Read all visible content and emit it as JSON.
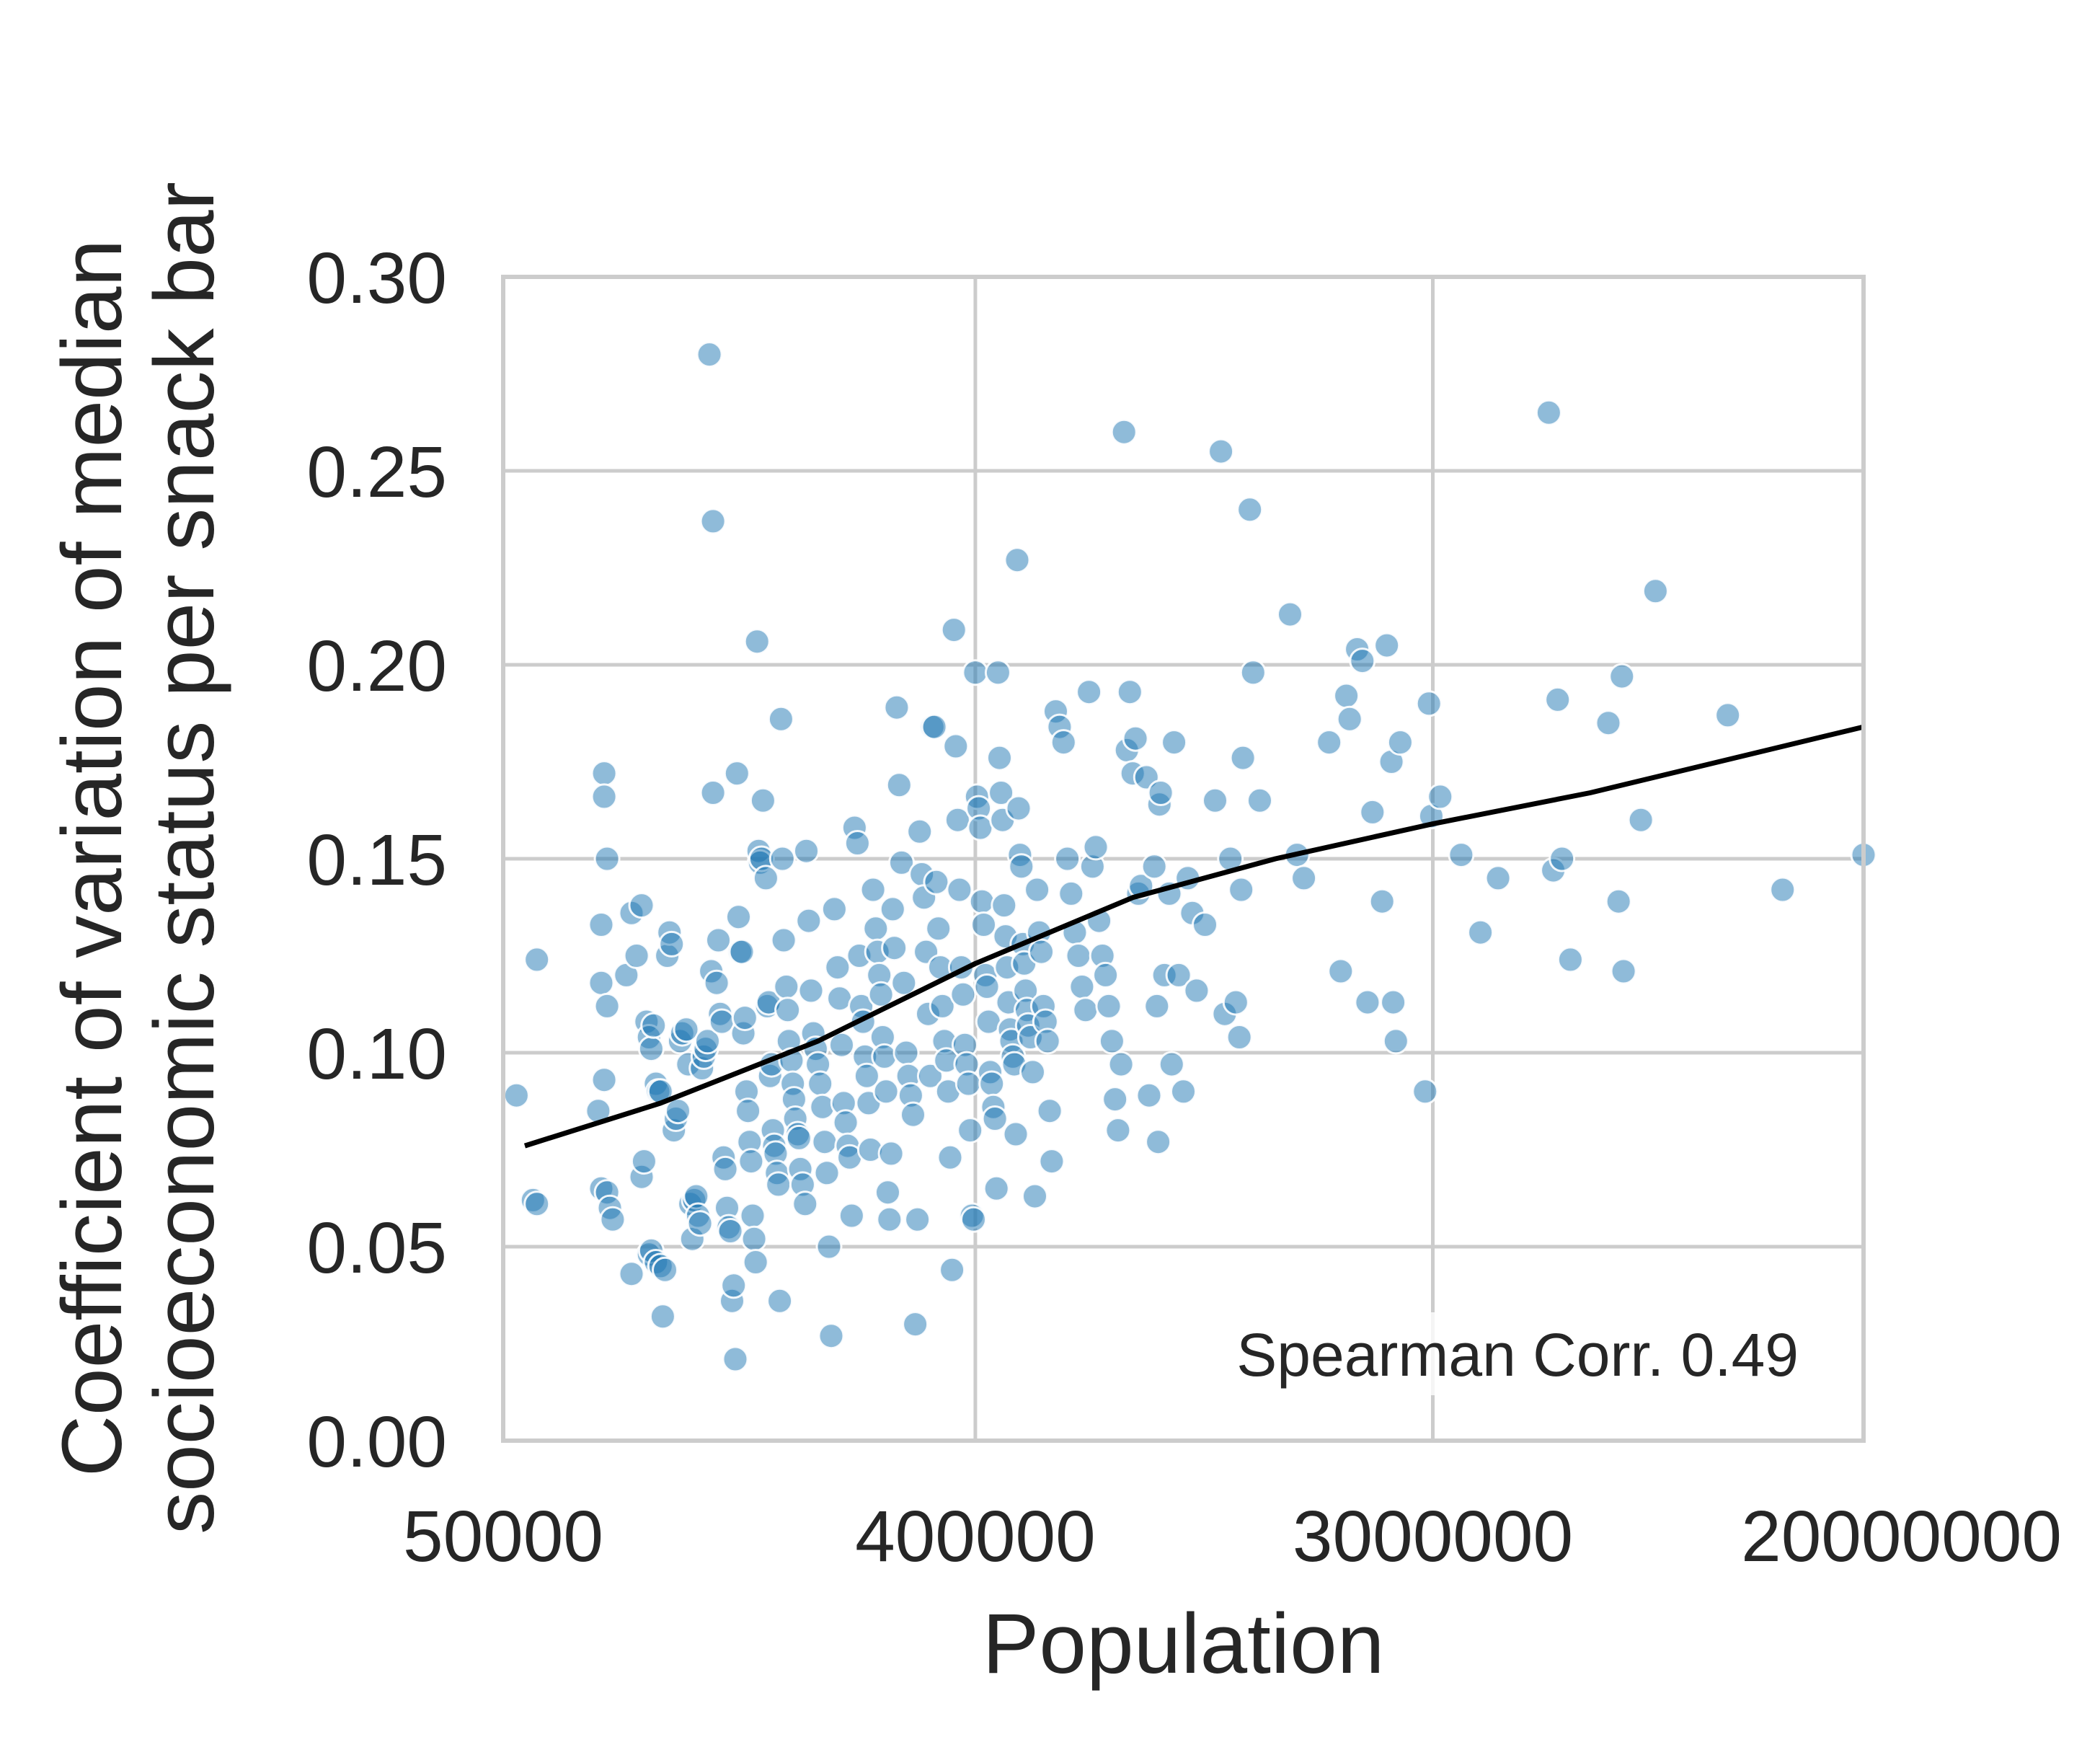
{
  "chart_data": {
    "type": "scatter",
    "title": "",
    "xlabel": "Population",
    "ylabel_lines": [
      "Coefficient of variation of median",
      "socioeconomic status per snack bar"
    ],
    "x_scale": "log",
    "xlim": [
      50000,
      20000000
    ],
    "ylim": [
      0.0,
      0.3
    ],
    "x_ticks": [
      50000,
      400000,
      3000000,
      20000000
    ],
    "x_tick_labels": [
      "50000",
      "400000",
      "3000000",
      "20000000"
    ],
    "y_ticks": [
      0.0,
      0.05,
      0.1,
      0.15,
      0.2,
      0.25,
      0.3
    ],
    "y_tick_labels": [
      "0.00",
      "0.05",
      "0.10",
      "0.15",
      "0.20",
      "0.25",
      "0.30"
    ],
    "grid": true,
    "annotation": "Spearman Corr. 0.49",
    "colors": {
      "points": "#1f77b4",
      "trend": "#000000",
      "grid": "#cccccc",
      "text": "#262626"
    },
    "trend_line": {
      "x": [
        55000,
        100000,
        200000,
        400000,
        800000,
        1500000,
        3000000,
        6000000,
        20000000
      ],
      "y": [
        0.076,
        0.087,
        0.103,
        0.123,
        0.14,
        0.15,
        0.159,
        0.167,
        0.184
      ]
    },
    "points": [
      [
        53000,
        0.089
      ],
      [
        58000,
        0.124
      ],
      [
        57000,
        0.062
      ],
      [
        58000,
        0.061
      ],
      [
        77000,
        0.133
      ],
      [
        78000,
        0.172
      ],
      [
        78000,
        0.166
      ],
      [
        79000,
        0.15
      ],
      [
        76000,
        0.085
      ],
      [
        78000,
        0.093
      ],
      [
        77000,
        0.118
      ],
      [
        79000,
        0.112
      ],
      [
        77000,
        0.065
      ],
      [
        79000,
        0.064
      ],
      [
        80000,
        0.06
      ],
      [
        81000,
        0.057
      ],
      [
        86000,
        0.12
      ],
      [
        88000,
        0.136
      ],
      [
        90000,
        0.125
      ],
      [
        92000,
        0.138
      ],
      [
        94000,
        0.108
      ],
      [
        95000,
        0.104
      ],
      [
        96000,
        0.101
      ],
      [
        97000,
        0.107
      ],
      [
        98000,
        0.092
      ],
      [
        99000,
        0.09
      ],
      [
        100000,
        0.09
      ],
      [
        88000,
        0.043
      ],
      [
        92000,
        0.068
      ],
      [
        93000,
        0.072
      ],
      [
        95000,
        0.048
      ],
      [
        96000,
        0.049
      ],
      [
        98000,
        0.046
      ],
      [
        100000,
        0.045
      ],
      [
        102000,
        0.044
      ],
      [
        101000,
        0.032
      ],
      [
        103000,
        0.125
      ],
      [
        104000,
        0.131
      ],
      [
        105000,
        0.128
      ],
      [
        106000,
        0.08
      ],
      [
        107000,
        0.083
      ],
      [
        108000,
        0.085
      ],
      [
        109000,
        0.103
      ],
      [
        110000,
        0.105
      ],
      [
        112000,
        0.106
      ],
      [
        113000,
        0.097
      ],
      [
        114000,
        0.061
      ],
      [
        115000,
        0.052
      ],
      [
        116000,
        0.062
      ],
      [
        117000,
        0.063
      ],
      [
        118000,
        0.058
      ],
      [
        119000,
        0.056
      ],
      [
        120000,
        0.096
      ],
      [
        121000,
        0.099
      ],
      [
        122000,
        0.101
      ],
      [
        123000,
        0.103
      ],
      [
        124000,
        0.28
      ],
      [
        126000,
        0.237
      ],
      [
        126000,
        0.167
      ],
      [
        125000,
        0.121
      ],
      [
        128000,
        0.118
      ],
      [
        129000,
        0.129
      ],
      [
        130000,
        0.11
      ],
      [
        131000,
        0.108
      ],
      [
        132000,
        0.073
      ],
      [
        133000,
        0.07
      ],
      [
        134000,
        0.06
      ],
      [
        135000,
        0.055
      ],
      [
        136000,
        0.054
      ],
      [
        137000,
        0.036
      ],
      [
        138000,
        0.04
      ],
      [
        139000,
        0.021
      ],
      [
        140000,
        0.172
      ],
      [
        141000,
        0.135
      ],
      [
        142000,
        0.126
      ],
      [
        143000,
        0.126
      ],
      [
        144000,
        0.105
      ],
      [
        145000,
        0.109
      ],
      [
        146000,
        0.09
      ],
      [
        147000,
        0.085
      ],
      [
        148000,
        0.077
      ],
      [
        149000,
        0.072
      ],
      [
        150000,
        0.058
      ],
      [
        151000,
        0.052
      ],
      [
        152000,
        0.046
      ],
      [
        153000,
        0.206
      ],
      [
        154000,
        0.152
      ],
      [
        155000,
        0.149
      ],
      [
        156000,
        0.15
      ],
      [
        157000,
        0.165
      ],
      [
        159000,
        0.145
      ],
      [
        160000,
        0.112
      ],
      [
        161000,
        0.113
      ],
      [
        162000,
        0.094
      ],
      [
        163000,
        0.097
      ],
      [
        164000,
        0.08
      ],
      [
        165000,
        0.076
      ],
      [
        166000,
        0.074
      ],
      [
        167000,
        0.069
      ],
      [
        168000,
        0.066
      ],
      [
        169000,
        0.036
      ],
      [
        170000,
        0.186
      ],
      [
        171000,
        0.15
      ],
      [
        172000,
        0.129
      ],
      [
        174000,
        0.117
      ],
      [
        175000,
        0.111
      ],
      [
        176000,
        0.103
      ],
      [
        178000,
        0.098
      ],
      [
        179000,
        0.092
      ],
      [
        180000,
        0.088
      ],
      [
        181000,
        0.083
      ],
      [
        183000,
        0.079
      ],
      [
        184000,
        0.078
      ],
      [
        185000,
        0.07
      ],
      [
        187000,
        0.066
      ],
      [
        189000,
        0.061
      ],
      [
        190000,
        0.152
      ],
      [
        192000,
        0.134
      ],
      [
        194000,
        0.116
      ],
      [
        196000,
        0.105
      ],
      [
        198000,
        0.101
      ],
      [
        200000,
        0.097
      ],
      [
        202000,
        0.092
      ],
      [
        204000,
        0.086
      ],
      [
        206000,
        0.077
      ],
      [
        208000,
        0.069
      ],
      [
        210000,
        0.05
      ],
      [
        212000,
        0.027
      ],
      [
        215000,
        0.137
      ],
      [
        218000,
        0.122
      ],
      [
        220000,
        0.114
      ],
      [
        222000,
        0.102
      ],
      [
        224000,
        0.087
      ],
      [
        226000,
        0.082
      ],
      [
        228000,
        0.076
      ],
      [
        230000,
        0.073
      ],
      [
        232000,
        0.058
      ],
      [
        235000,
        0.158
      ],
      [
        238000,
        0.154
      ],
      [
        240000,
        0.125
      ],
      [
        242000,
        0.112
      ],
      [
        244000,
        0.108
      ],
      [
        246000,
        0.099
      ],
      [
        248000,
        0.094
      ],
      [
        250000,
        0.087
      ],
      [
        252000,
        0.075
      ],
      [
        255000,
        0.142
      ],
      [
        258000,
        0.132
      ],
      [
        260000,
        0.126
      ],
      [
        262000,
        0.12
      ],
      [
        264000,
        0.115
      ],
      [
        266000,
        0.104
      ],
      [
        268000,
        0.099
      ],
      [
        270000,
        0.09
      ],
      [
        272000,
        0.064
      ],
      [
        274000,
        0.057
      ],
      [
        276000,
        0.074
      ],
      [
        278000,
        0.137
      ],
      [
        280000,
        0.127
      ],
      [
        283000,
        0.189
      ],
      [
        286000,
        0.169
      ],
      [
        289000,
        0.149
      ],
      [
        292000,
        0.118
      ],
      [
        295000,
        0.1
      ],
      [
        298000,
        0.094
      ],
      [
        301000,
        0.089
      ],
      [
        304000,
        0.084
      ],
      [
        307000,
        0.03
      ],
      [
        310000,
        0.057
      ],
      [
        313000,
        0.157
      ],
      [
        316000,
        0.146
      ],
      [
        319000,
        0.14
      ],
      [
        322000,
        0.126
      ],
      [
        325000,
        0.11
      ],
      [
        328000,
        0.094
      ],
      [
        331000,
        0.184
      ],
      [
        334000,
        0.184
      ],
      [
        337000,
        0.144
      ],
      [
        340000,
        0.132
      ],
      [
        343000,
        0.122
      ],
      [
        346000,
        0.112
      ],
      [
        349000,
        0.103
      ],
      [
        352000,
        0.098
      ],
      [
        355000,
        0.09
      ],
      [
        358000,
        0.073
      ],
      [
        361000,
        0.044
      ],
      [
        364000,
        0.209
      ],
      [
        367000,
        0.179
      ],
      [
        370000,
        0.16
      ],
      [
        373000,
        0.142
      ],
      [
        376000,
        0.122
      ],
      [
        379000,
        0.115
      ],
      [
        382000,
        0.102
      ],
      [
        385000,
        0.097
      ],
      [
        388000,
        0.092
      ],
      [
        391000,
        0.08
      ],
      [
        394000,
        0.058
      ],
      [
        397000,
        0.057
      ],
      [
        400000,
        0.198
      ],
      [
        403000,
        0.166
      ],
      [
        406000,
        0.163
      ],
      [
        409000,
        0.158
      ],
      [
        412000,
        0.139
      ],
      [
        415000,
        0.133
      ],
      [
        418000,
        0.12
      ],
      [
        421000,
        0.117
      ],
      [
        424000,
        0.108
      ],
      [
        427000,
        0.095
      ],
      [
        430000,
        0.092
      ],
      [
        433000,
        0.086
      ],
      [
        436000,
        0.083
      ],
      [
        439000,
        0.065
      ],
      [
        442000,
        0.198
      ],
      [
        445000,
        0.176
      ],
      [
        448000,
        0.167
      ],
      [
        451000,
        0.16
      ],
      [
        454000,
        0.138
      ],
      [
        457000,
        0.13
      ],
      [
        460000,
        0.122
      ],
      [
        463000,
        0.113
      ],
      [
        466000,
        0.106
      ],
      [
        469000,
        0.103
      ],
      [
        472000,
        0.099
      ],
      [
        475000,
        0.097
      ],
      [
        478000,
        0.079
      ],
      [
        481000,
        0.227
      ],
      [
        484000,
        0.163
      ],
      [
        487000,
        0.151
      ],
      [
        490000,
        0.148
      ],
      [
        493000,
        0.128
      ],
      [
        496000,
        0.123
      ],
      [
        499000,
        0.116
      ],
      [
        502000,
        0.111
      ],
      [
        505000,
        0.107
      ],
      [
        510000,
        0.104
      ],
      [
        515000,
        0.095
      ],
      [
        520000,
        0.063
      ],
      [
        525000,
        0.142
      ],
      [
        530000,
        0.131
      ],
      [
        535000,
        0.126
      ],
      [
        540000,
        0.112
      ],
      [
        545000,
        0.108
      ],
      [
        550000,
        0.103
      ],
      [
        555000,
        0.085
      ],
      [
        560000,
        0.072
      ],
      [
        570000,
        0.188
      ],
      [
        580000,
        0.184
      ],
      [
        590000,
        0.18
      ],
      [
        600000,
        0.15
      ],
      [
        610000,
        0.141
      ],
      [
        620000,
        0.131
      ],
      [
        630000,
        0.125
      ],
      [
        640000,
        0.117
      ],
      [
        650000,
        0.111
      ],
      [
        660000,
        0.193
      ],
      [
        670000,
        0.148
      ],
      [
        680000,
        0.153
      ],
      [
        690000,
        0.134
      ],
      [
        700000,
        0.125
      ],
      [
        710000,
        0.12
      ],
      [
        720000,
        0.112
      ],
      [
        730000,
        0.103
      ],
      [
        740000,
        0.088
      ],
      [
        750000,
        0.08
      ],
      [
        760000,
        0.097
      ],
      [
        770000,
        0.26
      ],
      [
        780000,
        0.178
      ],
      [
        790000,
        0.193
      ],
      [
        800000,
        0.172
      ],
      [
        810000,
        0.181
      ],
      [
        820000,
        0.141
      ],
      [
        830000,
        0.143
      ],
      [
        850000,
        0.171
      ],
      [
        860000,
        0.089
      ],
      [
        880000,
        0.148
      ],
      [
        890000,
        0.112
      ],
      [
        895000,
        0.077
      ],
      [
        900000,
        0.164
      ],
      [
        905000,
        0.167
      ],
      [
        920000,
        0.12
      ],
      [
        940000,
        0.141
      ],
      [
        950000,
        0.097
      ],
      [
        960000,
        0.18
      ],
      [
        980000,
        0.12
      ],
      [
        1000000,
        0.09
      ],
      [
        1020000,
        0.145
      ],
      [
        1040000,
        0.136
      ],
      [
        1060000,
        0.116
      ],
      [
        1100000,
        0.133
      ],
      [
        1150000,
        0.165
      ],
      [
        1180000,
        0.255
      ],
      [
        1200000,
        0.11
      ],
      [
        1230000,
        0.15
      ],
      [
        1260000,
        0.113
      ],
      [
        1280000,
        0.104
      ],
      [
        1290000,
        0.142
      ],
      [
        1300000,
        0.176
      ],
      [
        1340000,
        0.24
      ],
      [
        1360000,
        0.198
      ],
      [
        1400000,
        0.165
      ],
      [
        1600000,
        0.213
      ],
      [
        1650000,
        0.151
      ],
      [
        1700000,
        0.145
      ],
      [
        1900000,
        0.18
      ],
      [
        2000000,
        0.121
      ],
      [
        2050000,
        0.192
      ],
      [
        2080000,
        0.186
      ],
      [
        2150000,
        0.204
      ],
      [
        2200000,
        0.201
      ],
      [
        2250000,
        0.113
      ],
      [
        2300000,
        0.162
      ],
      [
        2400000,
        0.139
      ],
      [
        2450000,
        0.205
      ],
      [
        2500000,
        0.175
      ],
      [
        2520000,
        0.113
      ],
      [
        2550000,
        0.103
      ],
      [
        2600000,
        0.18
      ],
      [
        2900000,
        0.09
      ],
      [
        2950000,
        0.19
      ],
      [
        2980000,
        0.161
      ],
      [
        3100000,
        0.166
      ],
      [
        3400000,
        0.151
      ],
      [
        3700000,
        0.131
      ],
      [
        4000000,
        0.145
      ],
      [
        5000000,
        0.265
      ],
      [
        5100000,
        0.147
      ],
      [
        5200000,
        0.191
      ],
      [
        5300000,
        0.15
      ],
      [
        5500000,
        0.124
      ],
      [
        6500000,
        0.185
      ],
      [
        6800000,
        0.139
      ],
      [
        6900000,
        0.197
      ],
      [
        6950000,
        0.121
      ],
      [
        7500000,
        0.16
      ],
      [
        8000000,
        0.219
      ],
      [
        11000000,
        0.187
      ],
      [
        14000000,
        0.142
      ],
      [
        20000000,
        0.151
      ]
    ]
  }
}
